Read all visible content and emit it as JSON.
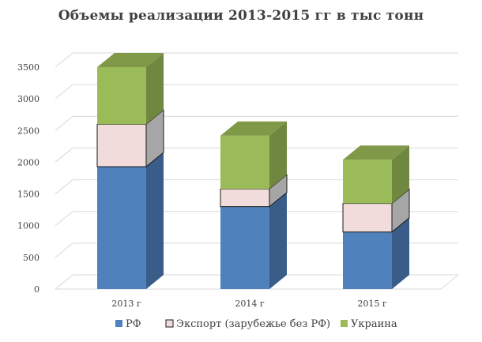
{
  "chart_data": {
    "type": "bar",
    "stacked": true,
    "three_d": true,
    "title": "Объемы реализации 2013-2015 гг в  тыс тонн",
    "categories": [
      "2013 г",
      "2014 г",
      "2015 г"
    ],
    "series": [
      {
        "name": "РФ",
        "values": [
          1930,
          1300,
          900
        ],
        "color": "#4f81bd"
      },
      {
        "name": "Экспорт (зарубежье без РФ)",
        "values": [
          670,
          280,
          450
        ],
        "color": "#f2dcdb"
      },
      {
        "name": "Украина",
        "values": [
          900,
          840,
          690
        ],
        "color": "#9bbb59"
      }
    ],
    "ylim": [
      0,
      3500
    ],
    "yticks": [
      "0",
      "500",
      "1000",
      "1500",
      "2000",
      "2500",
      "3000",
      "3500"
    ],
    "ytick_values": [
      0,
      500,
      1000,
      1500,
      2000,
      2500,
      3000,
      3500
    ],
    "grid": true,
    "legend_position": "bottom"
  }
}
